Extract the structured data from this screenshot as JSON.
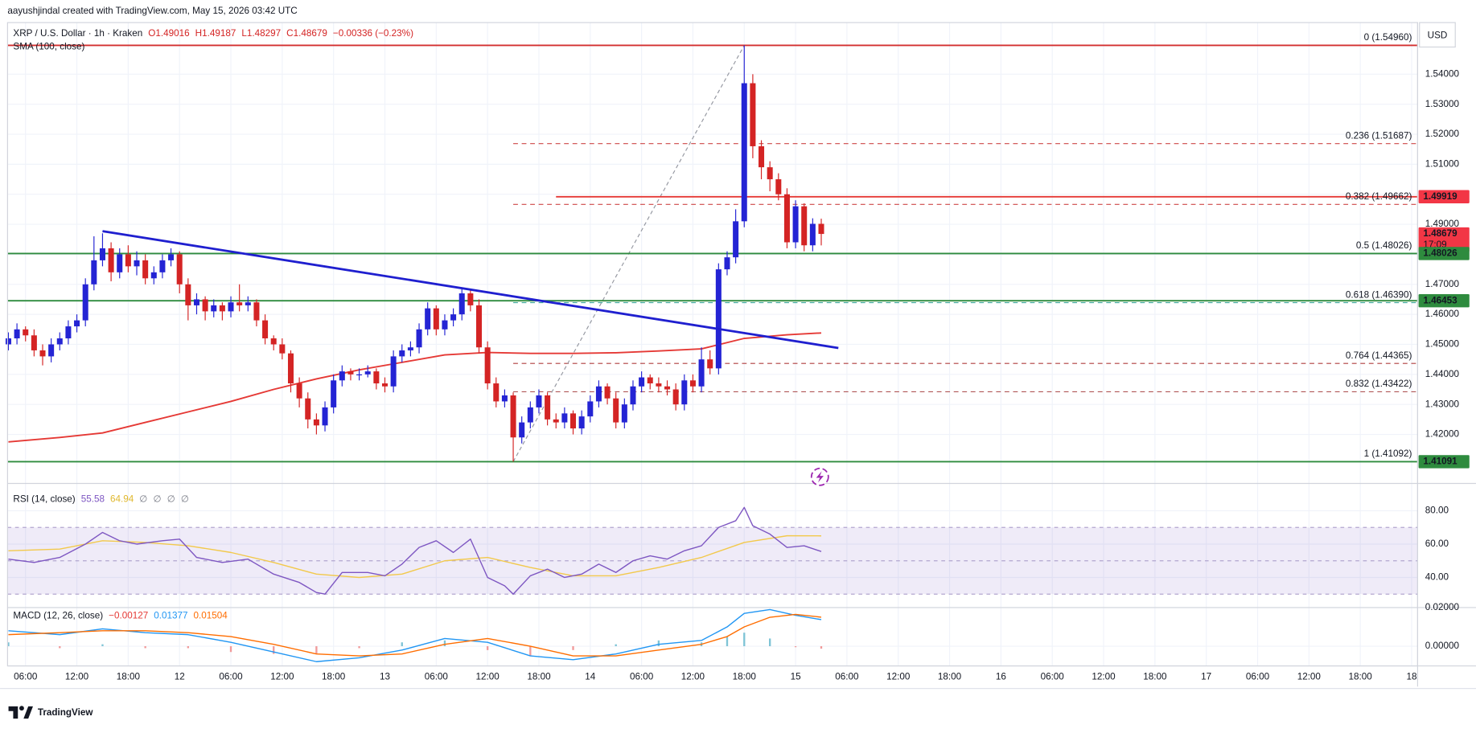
{
  "attribution": "aayushjindal created with TradingView.com, May 15, 2026 03:42 UTC",
  "brand": "TradingView",
  "symbol": "XRP / U.S. Dollar · 1h · Kraken",
  "ohlc": [
    "O1.49016",
    "H1.49187",
    "L1.48297",
    "C1.48679"
  ],
  "change": "−0.00336 (−0.23%)",
  "currency": "USD",
  "chart_data": {
    "type": "candlestick",
    "up_color": "#2424d4",
    "down_color": "#d42424",
    "grid": true,
    "xlim": [
      3.9,
      168.7
    ],
    "xticks": [
      {
        "value": 6,
        "label": "06:00"
      },
      {
        "value": 12,
        "label": "12:00"
      },
      {
        "value": 18,
        "label": "18:00"
      },
      {
        "value": 24,
        "label": "12"
      },
      {
        "value": 30,
        "label": "06:00"
      },
      {
        "value": 36,
        "label": "12:00"
      },
      {
        "value": 42,
        "label": "18:00"
      },
      {
        "value": 48,
        "label": "13"
      },
      {
        "value": 54,
        "label": "06:00"
      },
      {
        "value": 60,
        "label": "12:00"
      },
      {
        "value": 66,
        "label": "18:00"
      },
      {
        "value": 72,
        "label": "14"
      },
      {
        "value": 78,
        "label": "06:00"
      },
      {
        "value": 84,
        "label": "12:00"
      },
      {
        "value": 90,
        "label": "18:00"
      },
      {
        "value": 96,
        "label": "15"
      },
      {
        "value": 102,
        "label": "06:00"
      },
      {
        "value": 108,
        "label": "12:00"
      },
      {
        "value": 114,
        "label": "18:00"
      },
      {
        "value": 120,
        "label": "16"
      },
      {
        "value": 126,
        "label": "06:00"
      },
      {
        "value": 132,
        "label": "12:00"
      },
      {
        "value": 138,
        "label": "18:00"
      },
      {
        "value": 144,
        "label": "17"
      },
      {
        "value": 150,
        "label": "06:00"
      },
      {
        "value": 156,
        "label": "12:00"
      },
      {
        "value": 162,
        "label": "18:00"
      },
      {
        "value": 168,
        "label": "18"
      }
    ],
    "ylim": [
      1.4043,
      1.5572
    ],
    "yticks": [
      {
        "value": 1.42,
        "label": "1.42000"
      },
      {
        "value": 1.43,
        "label": "1.43000"
      },
      {
        "value": 1.44,
        "label": "1.44000"
      },
      {
        "value": 1.45,
        "label": "1.45000"
      },
      {
        "value": 1.46,
        "label": "1.46000"
      },
      {
        "value": 1.47,
        "label": "1.47000"
      },
      {
        "value": 1.48,
        "label": "1.48000"
      },
      {
        "value": 1.49,
        "label": "1.49000"
      },
      {
        "value": 1.5,
        "label": "1.50000"
      },
      {
        "value": 1.51,
        "label": "1.51000"
      },
      {
        "value": 1.52,
        "label": "1.52000"
      },
      {
        "value": 1.53,
        "label": "1.53000"
      },
      {
        "value": 1.54,
        "label": "1.54000"
      }
    ],
    "x": [
      4,
      5,
      6,
      7,
      8,
      9,
      10,
      11,
      12,
      13,
      14,
      15,
      16,
      17,
      18,
      19,
      20,
      21,
      22,
      23,
      24,
      25,
      26,
      27,
      28,
      29,
      30,
      31,
      32,
      33,
      34,
      35,
      36,
      37,
      38,
      39,
      40,
      41,
      42,
      43,
      44,
      45,
      46,
      47,
      48,
      49,
      50,
      51,
      52,
      53,
      54,
      55,
      56,
      57,
      58,
      59,
      60,
      61,
      62,
      63,
      64,
      65,
      66,
      67,
      68,
      69,
      70,
      71,
      72,
      73,
      74,
      75,
      76,
      77,
      78,
      79,
      80,
      81,
      82,
      83,
      84,
      85,
      86,
      87,
      88,
      89,
      90,
      91,
      92,
      93,
      94,
      95,
      96,
      97,
      98,
      99
    ],
    "candles": [
      [
        1.45,
        1.454,
        1.448,
        1.452
      ],
      [
        1.452,
        1.457,
        1.45,
        1.455
      ],
      [
        1.455,
        1.456,
        1.451,
        1.453
      ],
      [
        1.453,
        1.455,
        1.446,
        1.448
      ],
      [
        1.448,
        1.45,
        1.443,
        1.446
      ],
      [
        1.446,
        1.452,
        1.444,
        1.45
      ],
      [
        1.45,
        1.454,
        1.448,
        1.452
      ],
      [
        1.452,
        1.458,
        1.45,
        1.456
      ],
      [
        1.456,
        1.46,
        1.454,
        1.458
      ],
      [
        1.458,
        1.472,
        1.456,
        1.47
      ],
      [
        1.47,
        1.486,
        1.468,
        1.478
      ],
      [
        1.478,
        1.487,
        1.476,
        1.482
      ],
      [
        1.482,
        1.484,
        1.471,
        1.474
      ],
      [
        1.474,
        1.482,
        1.472,
        1.48
      ],
      [
        1.48,
        1.483,
        1.474,
        1.476
      ],
      [
        1.476,
        1.481,
        1.473,
        1.478
      ],
      [
        1.478,
        1.48,
        1.47,
        1.472
      ],
      [
        1.472,
        1.476,
        1.47,
        1.474
      ],
      [
        1.474,
        1.48,
        1.472,
        1.478
      ],
      [
        1.478,
        1.482,
        1.476,
        1.48
      ],
      [
        1.48,
        1.481,
        1.467,
        1.47
      ],
      [
        1.47,
        1.472,
        1.458,
        1.463
      ],
      [
        1.463,
        1.467,
        1.46,
        1.465
      ],
      [
        1.465,
        1.466,
        1.458,
        1.461
      ],
      [
        1.461,
        1.465,
        1.459,
        1.463
      ],
      [
        1.463,
        1.464,
        1.458,
        1.461
      ],
      [
        1.461,
        1.466,
        1.459,
        1.464
      ],
      [
        1.464,
        1.47,
        1.461,
        1.463
      ],
      [
        1.463,
        1.466,
        1.461,
        1.464
      ],
      [
        1.464,
        1.465,
        1.456,
        1.458
      ],
      [
        1.458,
        1.46,
        1.45,
        1.452
      ],
      [
        1.452,
        1.453,
        1.448,
        1.45
      ],
      [
        1.45,
        1.452,
        1.445,
        1.447
      ],
      [
        1.447,
        1.448,
        1.434,
        1.437
      ],
      [
        1.437,
        1.439,
        1.429,
        1.432
      ],
      [
        1.432,
        1.434,
        1.422,
        1.425
      ],
      [
        1.425,
        1.427,
        1.42,
        1.423
      ],
      [
        1.423,
        1.431,
        1.421,
        1.429
      ],
      [
        1.429,
        1.44,
        1.427,
        1.438
      ],
      [
        1.438,
        1.443,
        1.436,
        1.441
      ],
      [
        1.441,
        1.442,
        1.438,
        1.44
      ],
      [
        1.44,
        1.442,
        1.438,
        1.44
      ],
      [
        1.44,
        1.443,
        1.439,
        1.441
      ],
      [
        1.441,
        1.442,
        1.435,
        1.437
      ],
      [
        1.437,
        1.439,
        1.434,
        1.436
      ],
      [
        1.436,
        1.448,
        1.434,
        1.446
      ],
      [
        1.446,
        1.45,
        1.444,
        1.448
      ],
      [
        1.448,
        1.451,
        1.446,
        1.449
      ],
      [
        1.449,
        1.457,
        1.447,
        1.455
      ],
      [
        1.455,
        1.464,
        1.453,
        1.462
      ],
      [
        1.462,
        1.463,
        1.453,
        1.455
      ],
      [
        1.455,
        1.46,
        1.453,
        1.458
      ],
      [
        1.458,
        1.462,
        1.456,
        1.46
      ],
      [
        1.46,
        1.469,
        1.458,
        1.467
      ],
      [
        1.467,
        1.468,
        1.461,
        1.463
      ],
      [
        1.463,
        1.465,
        1.447,
        1.449
      ],
      [
        1.449,
        1.451,
        1.435,
        1.437
      ],
      [
        1.437,
        1.439,
        1.429,
        1.431
      ],
      [
        1.431,
        1.435,
        1.429,
        1.433
      ],
      [
        1.433,
        1.434,
        1.41092,
        1.419
      ],
      [
        1.419,
        1.426,
        1.417,
        1.424
      ],
      [
        1.424,
        1.431,
        1.422,
        1.429
      ],
      [
        1.429,
        1.435,
        1.427,
        1.433
      ],
      [
        1.433,
        1.434,
        1.423,
        1.425
      ],
      [
        1.425,
        1.427,
        1.422,
        1.424
      ],
      [
        1.424,
        1.429,
        1.422,
        1.427
      ],
      [
        1.427,
        1.428,
        1.42,
        1.422
      ],
      [
        1.422,
        1.428,
        1.42,
        1.426
      ],
      [
        1.426,
        1.433,
        1.424,
        1.431
      ],
      [
        1.431,
        1.438,
        1.429,
        1.436
      ],
      [
        1.436,
        1.437,
        1.43,
        1.432
      ],
      [
        1.432,
        1.434,
        1.422,
        1.424
      ],
      [
        1.424,
        1.432,
        1.422,
        1.43
      ],
      [
        1.43,
        1.438,
        1.428,
        1.436
      ],
      [
        1.436,
        1.441,
        1.434,
        1.439
      ],
      [
        1.439,
        1.44,
        1.435,
        1.437
      ],
      [
        1.437,
        1.439,
        1.434,
        1.436
      ],
      [
        1.436,
        1.438,
        1.433,
        1.435
      ],
      [
        1.435,
        1.437,
        1.428,
        1.43
      ],
      [
        1.43,
        1.44,
        1.428,
        1.438
      ],
      [
        1.438,
        1.44,
        1.434,
        1.436
      ],
      [
        1.436,
        1.449,
        1.434,
        1.445
      ],
      [
        1.445,
        1.448,
        1.44,
        1.442
      ],
      [
        1.442,
        1.477,
        1.44,
        1.475
      ],
      [
        1.475,
        1.481,
        1.473,
        1.479
      ],
      [
        1.479,
        1.495,
        1.477,
        1.491
      ],
      [
        1.491,
        1.5496,
        1.489,
        1.537
      ],
      [
        1.537,
        1.54,
        1.512,
        1.516
      ],
      [
        1.516,
        1.518,
        1.505,
        1.509
      ],
      [
        1.509,
        1.511,
        1.501,
        1.505
      ],
      [
        1.505,
        1.507,
        1.498,
        1.5
      ],
      [
        1.5,
        1.502,
        1.482,
        1.484
      ],
      [
        1.484,
        1.498,
        1.482,
        1.496
      ],
      [
        1.496,
        1.497,
        1.481,
        1.483
      ],
      [
        1.483,
        1.492,
        1.481,
        1.49016
      ],
      [
        1.49016,
        1.49187,
        1.48297,
        1.48679
      ]
    ],
    "sma": {
      "name": "SMA (100, close)",
      "color": "#e53935",
      "x": [
        4,
        10,
        15,
        20,
        25,
        30,
        35,
        40,
        45,
        50,
        55,
        60,
        65,
        70,
        75,
        80,
        85,
        90,
        95,
        99
      ],
      "values": [
        1.4175,
        1.419,
        1.4205,
        1.424,
        1.4275,
        1.431,
        1.435,
        1.4385,
        1.4415,
        1.444,
        1.4465,
        1.4473,
        1.447,
        1.447,
        1.4472,
        1.4478,
        1.4485,
        1.452,
        1.4532,
        1.4538
      ]
    },
    "trendline": {
      "color": "#1f1fcf",
      "points": [
        [
          15,
          1.4877
        ],
        [
          101,
          1.4488
        ]
      ]
    },
    "hlines": [
      {
        "value": 1.5496,
        "color": "#d32f2f"
      },
      {
        "value": 1.49919,
        "color": "#e53935",
        "x0": 68
      },
      {
        "value": 1.48026,
        "color": "#2e8b3e"
      },
      {
        "value": 1.46453,
        "color": "#2e8b3e"
      },
      {
        "value": 1.41091,
        "color": "#2e8b3e"
      }
    ],
    "fib": {
      "from": [
        63,
        1.41092
      ],
      "to": [
        90,
        1.5496
      ],
      "diagonal_color": "#9598a1",
      "levels": [
        {
          "value": 1.5496,
          "label": "0 (1.54960)",
          "color": "#787b86"
        },
        {
          "value": 1.51687,
          "label": "0.236 (1.51687)",
          "color": "#c62828"
        },
        {
          "value": 1.49662,
          "label": "0.382 (1.49662)",
          "color": "#c62828"
        },
        {
          "value": 1.48026,
          "label": "0.5 (1.48026)",
          "color": "#131722"
        },
        {
          "value": 1.4639,
          "label": "0.618 (1.46390)",
          "color": "#1e9a8a"
        },
        {
          "value": 1.44365,
          "label": "0.764 (1.44365)",
          "color": "#a31d1d"
        },
        {
          "value": 1.43422,
          "label": "0.832 (1.43422)",
          "color": "#a33a3a"
        },
        {
          "value": 1.41092,
          "label": "1 (1.41092)",
          "color": "#1aa3b8"
        }
      ]
    },
    "price_labels": [
      {
        "value": 1.49919,
        "label": "1.49919",
        "color": "#f23645"
      },
      {
        "value": 1.48679,
        "label": "1.48679",
        "color": "#f23645",
        "countdown": "17:09"
      },
      {
        "value": 1.48026,
        "label": "1.48026",
        "color": "#2e8b3e"
      },
      {
        "value": 1.46453,
        "label": "1.46453",
        "color": "#2e8b3e"
      },
      {
        "value": 1.41091,
        "label": "1.41091",
        "color": "#2e8b3e"
      }
    ],
    "rsi": {
      "name": "RSI (14, close)",
      "legend": [
        {
          "text": "55.58",
          "color": "#7e57c2"
        },
        {
          "text": "64.94",
          "color": "#e0b82e"
        },
        {
          "text": "∅",
          "color": "#787b86"
        },
        {
          "text": "∅",
          "color": "#787b86"
        },
        {
          "text": "∅",
          "color": "#787b86"
        },
        {
          "text": "∅",
          "color": "#787b86"
        }
      ],
      "ylim": [
        22.5,
        93
      ],
      "yticks": [
        {
          "value": 40,
          "label": "40.00"
        },
        {
          "value": 60,
          "label": "60.00"
        },
        {
          "value": 80,
          "label": "80.00"
        }
      ],
      "band": [
        30,
        70
      ],
      "levels": [
        30,
        50,
        70
      ],
      "band_color": "rgba(126,87,194,0.12)",
      "color": "#7e57c2",
      "x": [
        4,
        7,
        10,
        13,
        15,
        17,
        19,
        22,
        24,
        26,
        29,
        32,
        35,
        38,
        40,
        41,
        43,
        46,
        48,
        50,
        52,
        54,
        56,
        58,
        60,
        62,
        63,
        65,
        67,
        69,
        71,
        73,
        75,
        77,
        79,
        81,
        83,
        85,
        87,
        89,
        90,
        91,
        93,
        95,
        97,
        99
      ],
      "values": [
        51,
        49,
        52,
        60,
        67,
        62,
        60,
        62,
        63,
        52,
        49,
        51,
        42,
        37,
        31,
        30,
        43,
        43,
        41,
        48,
        58,
        62,
        55,
        63,
        40,
        35,
        30,
        41,
        45,
        40,
        42,
        48,
        43,
        50,
        53,
        51,
        56,
        59,
        70,
        74,
        82,
        71,
        66,
        58,
        59,
        55.58
      ],
      "ma": {
        "color": "#f2c94c",
        "x": [
          4,
          10,
          15,
          20,
          25,
          30,
          35,
          40,
          45,
          50,
          55,
          60,
          65,
          70,
          75,
          80,
          85,
          90,
          95,
          99
        ],
        "values": [
          56,
          57,
          62,
          61,
          59,
          55,
          49,
          42,
          40,
          42,
          50,
          52,
          46,
          41,
          41,
          46,
          52,
          61,
          65,
          64.94
        ]
      }
    },
    "macd": {
      "name": "MACD (12, 26, close)",
      "legend": [
        {
          "text": "−0.00127",
          "color": "#e53935"
        },
        {
          "text": "0.01377",
          "color": "#2196f3"
        },
        {
          "text": "0.01504",
          "color": "#ff6d00"
        }
      ],
      "ylim": [
        -0.0102,
        0.0205
      ],
      "yticks": [
        {
          "value": 0,
          "label": "0.00000"
        },
        {
          "value": 0.02,
          "label": "0.02000"
        }
      ],
      "x": [
        4,
        10,
        15,
        20,
        25,
        30,
        35,
        40,
        45,
        50,
        55,
        60,
        65,
        70,
        75,
        80,
        85,
        88,
        90,
        93,
        96,
        99
      ],
      "macd": [
        0.008,
        0.006,
        0.009,
        0.007,
        0.006,
        0.002,
        -0.003,
        -0.008,
        -0.006,
        -0.002,
        0.004,
        0.002,
        -0.005,
        -0.007,
        -0.004,
        0.001,
        0.003,
        0.01,
        0.017,
        0.019,
        0.016,
        0.01377
      ],
      "signal": [
        0.006,
        0.007,
        0.008,
        0.008,
        0.007,
        0.005,
        0.001,
        -0.004,
        -0.005,
        -0.004,
        0.001,
        0.004,
        0.0,
        -0.005,
        -0.005,
        -0.002,
        0.001,
        0.005,
        0.01,
        0.015,
        0.0165,
        0.01504
      ],
      "hist": [
        0.002,
        -0.001,
        0.001,
        -0.001,
        -0.001,
        -0.003,
        -0.004,
        -0.004,
        -0.001,
        0.002,
        0.003,
        -0.002,
        -0.005,
        -0.002,
        0.001,
        0.003,
        0.002,
        0.005,
        0.007,
        0.004,
        -0.0005,
        -0.00127
      ],
      "macd_color": "#2196f3",
      "signal_color": "#ff6d00",
      "hist_up": "#7fc4d6",
      "hist_down": "#f19a9a"
    }
  }
}
